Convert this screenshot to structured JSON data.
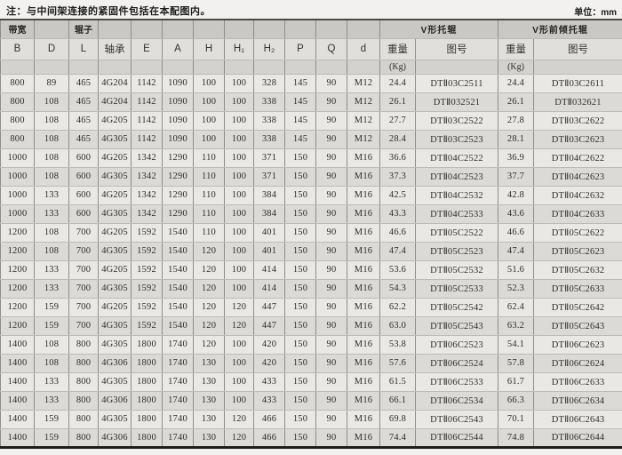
{
  "note": "注：与中间架连接的紧固件包括在本配图内。",
  "unit_label": "单位：mm",
  "table": {
    "group_headers": {
      "bandwidth": "带宽",
      "roller": "辊子",
      "v_idler": "V形托辊",
      "v_tilt_idler": "V形前倾托辊"
    },
    "columns": [
      "B",
      "D",
      "L",
      "轴承",
      "E",
      "A",
      "H",
      "H₁",
      "H₂",
      "P",
      "Q",
      "d",
      "重量",
      "图号",
      "重量",
      "图号"
    ],
    "kg_label": "(Kg)",
    "rows": [
      [
        "800",
        "89",
        "465",
        "4G204",
        "1142",
        "1090",
        "100",
        "100",
        "328",
        "145",
        "90",
        "M12",
        "24.4",
        "DTⅡ03C2511",
        "24.4",
        "DTⅡ03C2611"
      ],
      [
        "800",
        "108",
        "465",
        "4G204",
        "1142",
        "1090",
        "100",
        "100",
        "338",
        "145",
        "90",
        "M12",
        "26.1",
        "DTⅡ032521",
        "26.1",
        "DTⅡ032621"
      ],
      [
        "800",
        "108",
        "465",
        "4G205",
        "1142",
        "1090",
        "100",
        "100",
        "338",
        "145",
        "90",
        "M12",
        "27.7",
        "DTⅡ03C2522",
        "27.8",
        "DTⅡ03C2622"
      ],
      [
        "800",
        "108",
        "465",
        "4G305",
        "1142",
        "1090",
        "100",
        "100",
        "338",
        "145",
        "90",
        "M12",
        "28.4",
        "DTⅡ03C2523",
        "28.1",
        "DTⅡ03C2623"
      ],
      [
        "1000",
        "108",
        "600",
        "4G205",
        "1342",
        "1290",
        "110",
        "100",
        "371",
        "150",
        "90",
        "M16",
        "36.6",
        "DTⅡ04C2522",
        "36.9",
        "DTⅡ04C2622"
      ],
      [
        "1000",
        "108",
        "600",
        "4G305",
        "1342",
        "1290",
        "110",
        "100",
        "371",
        "150",
        "90",
        "M16",
        "37.3",
        "DTⅡ04C2523",
        "37.7",
        "DTⅡ04C2623"
      ],
      [
        "1000",
        "133",
        "600",
        "4G205",
        "1342",
        "1290",
        "110",
        "100",
        "384",
        "150",
        "90",
        "M16",
        "42.5",
        "DTⅡ04C2532",
        "42.8",
        "DTⅡ04C2632"
      ],
      [
        "1000",
        "133",
        "600",
        "4G305",
        "1342",
        "1290",
        "110",
        "100",
        "384",
        "150",
        "90",
        "M16",
        "43.3",
        "DTⅡ04C2533",
        "43.6",
        "DTⅡ04C2633"
      ],
      [
        "1200",
        "108",
        "700",
        "4G205",
        "1592",
        "1540",
        "110",
        "100",
        "401",
        "150",
        "90",
        "M16",
        "46.6",
        "DTⅡ05C2522",
        "46.6",
        "DTⅡ05C2622"
      ],
      [
        "1200",
        "108",
        "700",
        "4G305",
        "1592",
        "1540",
        "120",
        "100",
        "401",
        "150",
        "90",
        "M16",
        "47.4",
        "DTⅡ05C2523",
        "47.4",
        "DTⅡ05C2623"
      ],
      [
        "1200",
        "133",
        "700",
        "4G205",
        "1592",
        "1540",
        "120",
        "100",
        "414",
        "150",
        "90",
        "M16",
        "53.6",
        "DTⅡ05C2532",
        "51.6",
        "DTⅡ05C2632"
      ],
      [
        "1200",
        "133",
        "700",
        "4G305",
        "1592",
        "1540",
        "120",
        "100",
        "414",
        "150",
        "90",
        "M16",
        "54.3",
        "DTⅡ05C2533",
        "52.3",
        "DTⅡ05C2633"
      ],
      [
        "1200",
        "159",
        "700",
        "4G205",
        "1592",
        "1540",
        "120",
        "120",
        "447",
        "150",
        "90",
        "M16",
        "62.2",
        "DTⅡ05C2542",
        "62.4",
        "DTⅡ05C2642"
      ],
      [
        "1200",
        "159",
        "700",
        "4G305",
        "1592",
        "1540",
        "120",
        "120",
        "447",
        "150",
        "90",
        "M16",
        "63.0",
        "DTⅡ05C2543",
        "63.2",
        "DTⅡ05C2643"
      ],
      [
        "1400",
        "108",
        "800",
        "4G305",
        "1800",
        "1740",
        "120",
        "100",
        "420",
        "150",
        "90",
        "M16",
        "53.8",
        "DTⅡ06C2523",
        "54.1",
        "DTⅡ06C2623"
      ],
      [
        "1400",
        "108",
        "800",
        "4G306",
        "1800",
        "1740",
        "130",
        "100",
        "420",
        "150",
        "90",
        "M16",
        "57.6",
        "DTⅡ06C2524",
        "57.8",
        "DTⅡ06C2624"
      ],
      [
        "1400",
        "133",
        "800",
        "4G305",
        "1800",
        "1740",
        "130",
        "100",
        "433",
        "150",
        "90",
        "M16",
        "61.5",
        "DTⅡ06C2533",
        "61.7",
        "DTⅡ06C2633"
      ],
      [
        "1400",
        "133",
        "800",
        "4G306",
        "1800",
        "1740",
        "130",
        "100",
        "433",
        "150",
        "90",
        "M16",
        "66.1",
        "DTⅡ06C2534",
        "66.3",
        "DTⅡ06C2634"
      ],
      [
        "1400",
        "159",
        "800",
        "4G305",
        "1800",
        "1740",
        "130",
        "120",
        "466",
        "150",
        "90",
        "M16",
        "69.8",
        "DTⅡ06C2543",
        "70.1",
        "DTⅡ06C2643"
      ],
      [
        "1400",
        "159",
        "800",
        "4G306",
        "1800",
        "1740",
        "130",
        "120",
        "466",
        "150",
        "90",
        "M16",
        "74.4",
        "DTⅡ06C2544",
        "74.8",
        "DTⅡ06C2644"
      ]
    ]
  }
}
